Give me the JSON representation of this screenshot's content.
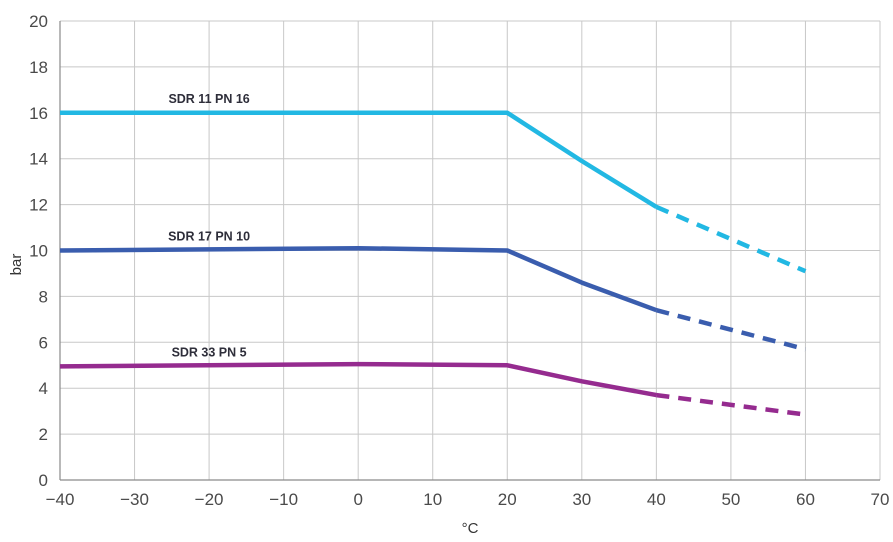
{
  "chart_data": {
    "type": "line",
    "xlabel": "°C",
    "ylabel": "bar",
    "xlim": [
      -40,
      70
    ],
    "ylim": [
      0,
      20
    ],
    "xticks": [
      -40,
      -30,
      -20,
      -10,
      0,
      10,
      20,
      30,
      40,
      50,
      60,
      70
    ],
    "xtick_labels": [
      "−40",
      "−30",
      "−20",
      "−10",
      "0",
      "10",
      "20",
      "30",
      "40",
      "50",
      "60",
      "70"
    ],
    "yticks": [
      0,
      2,
      4,
      6,
      8,
      10,
      12,
      14,
      16,
      18,
      20
    ],
    "grid": true,
    "legend": "none",
    "series": [
      {
        "name": "SDR 11 PN 16",
        "color": "#22b8e3",
        "solid": [
          [
            -40,
            16
          ],
          [
            20,
            16
          ],
          [
            30,
            13.9
          ],
          [
            40,
            11.9
          ]
        ],
        "dashed": [
          [
            40,
            11.9
          ],
          [
            60,
            9.1
          ]
        ]
      },
      {
        "name": "SDR 17 PN 10",
        "color": "#3a5dae",
        "solid": [
          [
            -40,
            10
          ],
          [
            0,
            10.1
          ],
          [
            20,
            10
          ],
          [
            30,
            8.6
          ],
          [
            40,
            7.4
          ]
        ],
        "dashed": [
          [
            40,
            7.4
          ],
          [
            60,
            5.7
          ]
        ]
      },
      {
        "name": "SDR 33 PN 5",
        "color": "#952b8f",
        "solid": [
          [
            -40,
            4.95
          ],
          [
            0,
            5.05
          ],
          [
            20,
            5
          ],
          [
            30,
            4.3
          ],
          [
            40,
            3.7
          ]
        ],
        "dashed": [
          [
            40,
            3.7
          ],
          [
            60,
            2.85
          ]
        ]
      }
    ]
  }
}
